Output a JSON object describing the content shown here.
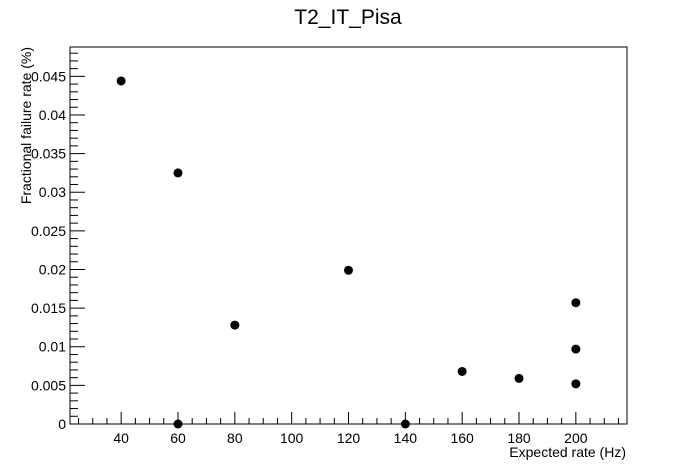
{
  "chart_data": {
    "type": "scatter",
    "title": "T2_IT_Pisa",
    "xlabel": "Expected rate (Hz)",
    "ylabel": "Fractional failure rate (%)",
    "xlim": [
      22,
      218
    ],
    "ylim": [
      0,
      0.0488
    ],
    "grid": false,
    "x_ticks": [
      40,
      60,
      80,
      100,
      120,
      140,
      160,
      180,
      200
    ],
    "x_tick_labels": [
      "40",
      "60",
      "80",
      "100",
      "120",
      "140",
      "160",
      "180",
      "200"
    ],
    "y_ticks": [
      0,
      0.005,
      0.01,
      0.015,
      0.02,
      0.025,
      0.03,
      0.035,
      0.04,
      0.045
    ],
    "y_tick_labels": [
      "0",
      "0.005",
      "0.01",
      "0.015",
      "0.02",
      "0.025",
      "0.03",
      "0.035",
      "0.04",
      "0.045"
    ],
    "points": [
      {
        "x": 40,
        "y": 0.0444
      },
      {
        "x": 60,
        "y": 0.0325
      },
      {
        "x": 60,
        "y": 0.0
      },
      {
        "x": 80,
        "y": 0.0128
      },
      {
        "x": 120,
        "y": 0.0199
      },
      {
        "x": 140,
        "y": 0.0
      },
      {
        "x": 160,
        "y": 0.0068
      },
      {
        "x": 180,
        "y": 0.0059
      },
      {
        "x": 200,
        "y": 0.0157
      },
      {
        "x": 200,
        "y": 0.0097
      },
      {
        "x": 200,
        "y": 0.0052
      }
    ]
  }
}
